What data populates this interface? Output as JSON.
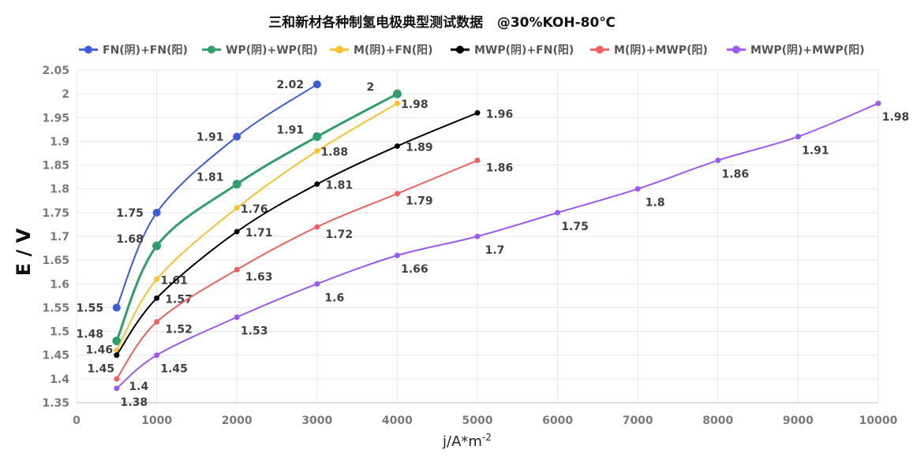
{
  "chart_data": {
    "type": "line",
    "title": "三和新材各种制氢电极典型测试数据   @30%KOH-80℃",
    "xlabel": "j/A*m",
    "xlabel_sup": "-2",
    "ylabel": "E / V",
    "xlim": [
      0,
      10000
    ],
    "ylim": [
      1.35,
      2.05
    ],
    "x_ticks": [
      "0",
      "1000",
      "2000",
      "3000",
      "4000",
      "5000",
      "6000",
      "7000",
      "8000",
      "9000",
      "10000"
    ],
    "y_ticks": [
      "1.35",
      "1.4",
      "1.45",
      "1.5",
      "1.55",
      "1.6",
      "1.65",
      "1.7",
      "1.75",
      "1.8",
      "1.85",
      "1.9",
      "1.95",
      "2",
      "2.05"
    ],
    "grid": true,
    "legend_position": "top",
    "series": [
      {
        "name": "FN(阴)+FN(阳)",
        "color": "#3b5bdb",
        "x": [
          500,
          1000,
          2000,
          3000
        ],
        "values": [
          1.55,
          1.75,
          1.91,
          2.02
        ]
      },
      {
        "name": "WP(阴)+WP(阳)",
        "color": "#2e9e6b",
        "x": [
          500,
          1000,
          2000,
          3000,
          4000
        ],
        "values": [
          1.48,
          1.68,
          1.81,
          1.91,
          2
        ]
      },
      {
        "name": "M(阴)+FN(阳)",
        "color": "#fbc02d",
        "x": [
          500,
          1000,
          2000,
          3000,
          4000
        ],
        "values": [
          1.46,
          1.61,
          1.76,
          1.88,
          1.98
        ]
      },
      {
        "name": "MWP(阴)+FN(阳)",
        "color": "#000000",
        "x": [
          500,
          1000,
          2000,
          3000,
          4000,
          5000
        ],
        "values": [
          1.45,
          1.57,
          1.71,
          1.81,
          1.89,
          1.96
        ]
      },
      {
        "name": "M(阴)+MWP(阳)",
        "color": "#f25f5f",
        "x": [
          500,
          1000,
          2000,
          3000,
          4000,
          5000
        ],
        "values": [
          1.4,
          1.52,
          1.63,
          1.72,
          1.79,
          1.86
        ]
      },
      {
        "name": "MWP(阴)+MWP(阳)",
        "color": "#9b59f5",
        "x": [
          500,
          1000,
          2000,
          3000,
          4000,
          5000,
          6000,
          7000,
          8000,
          9000,
          10000
        ],
        "values": [
          1.38,
          1.45,
          1.53,
          1.6,
          1.66,
          1.7,
          1.75,
          1.8,
          1.86,
          1.91,
          1.98
        ]
      }
    ]
  }
}
